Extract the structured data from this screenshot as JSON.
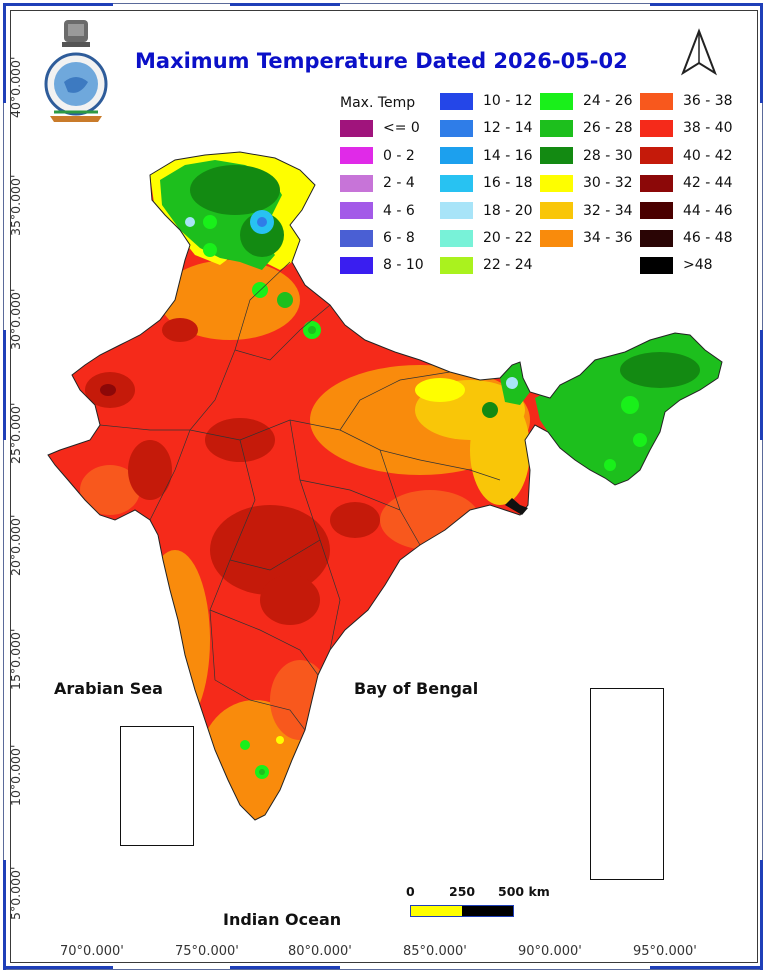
{
  "title": "Maximum Temperature Dated 2026-05-02",
  "legend": {
    "title": "Max. Temp",
    "items": [
      {
        "label": "<= 0",
        "color": "#a0147c"
      },
      {
        "label": "0 - 2",
        "color": "#e02ae8"
      },
      {
        "label": "2 - 4",
        "color": "#c774d8"
      },
      {
        "label": "4 - 6",
        "color": "#a35ae8"
      },
      {
        "label": "6 - 8",
        "color": "#4a5fd4"
      },
      {
        "label": "8 - 10",
        "color": "#3a1ef0"
      },
      {
        "label": "10 - 12",
        "color": "#2446e8"
      },
      {
        "label": "12 - 14",
        "color": "#2f7de8"
      },
      {
        "label": "14 - 16",
        "color": "#1ca0ee"
      },
      {
        "label": "16 - 18",
        "color": "#28c2f2"
      },
      {
        "label": "18 - 20",
        "color": "#a8e4f8"
      },
      {
        "label": "20 - 22",
        "color": "#78f2d8"
      },
      {
        "label": "22 - 24",
        "color": "#aaf21e"
      },
      {
        "label": "24 - 26",
        "color": "#19f01a"
      },
      {
        "label": "26 - 28",
        "color": "#1dbf1d"
      },
      {
        "label": "28 - 30",
        "color": "#138a12"
      },
      {
        "label": "30 - 32",
        "color": "#fefe00"
      },
      {
        "label": "32 - 34",
        "color": "#f9c608"
      },
      {
        "label": "34 - 36",
        "color": "#f98b0c"
      },
      {
        "label": "36 - 38",
        "color": "#f8581d"
      },
      {
        "label": "38 - 40",
        "color": "#f52a1a"
      },
      {
        "label": "40 - 42",
        "color": "#c51a0a"
      },
      {
        "label": "42 - 44",
        "color": "#8c0808"
      },
      {
        "label": "44 - 46",
        "color": "#4a0000"
      },
      {
        "label": "46 - 48",
        "color": "#2a0505"
      },
      {
        "label": ">48",
        "color": "#000000"
      }
    ]
  },
  "latitude_labels": [
    "40°0.000'",
    "35°0.000'",
    "30°0.000'",
    "25°0.000'",
    "20°0.000'",
    "15°0.000'",
    "10°0.000'",
    "5°0.000'"
  ],
  "longitude_labels": [
    "70°0.000'",
    "75°0.000'",
    "80°0.000'",
    "85°0.000'",
    "90°0.000'",
    "95°0.000'"
  ],
  "sea_labels": {
    "arabian_sea": "Arabian Sea",
    "bay_of_bengal": "Bay of Bengal",
    "indian_ocean": "Indian Ocean"
  },
  "scale_bar": {
    "labels": [
      "0",
      "250",
      "500 km"
    ],
    "colors": [
      "#ffff00",
      "#000000"
    ]
  },
  "icons": {
    "emblem": "imd-emblem-icon",
    "north_arrow": "north-arrow-icon"
  }
}
